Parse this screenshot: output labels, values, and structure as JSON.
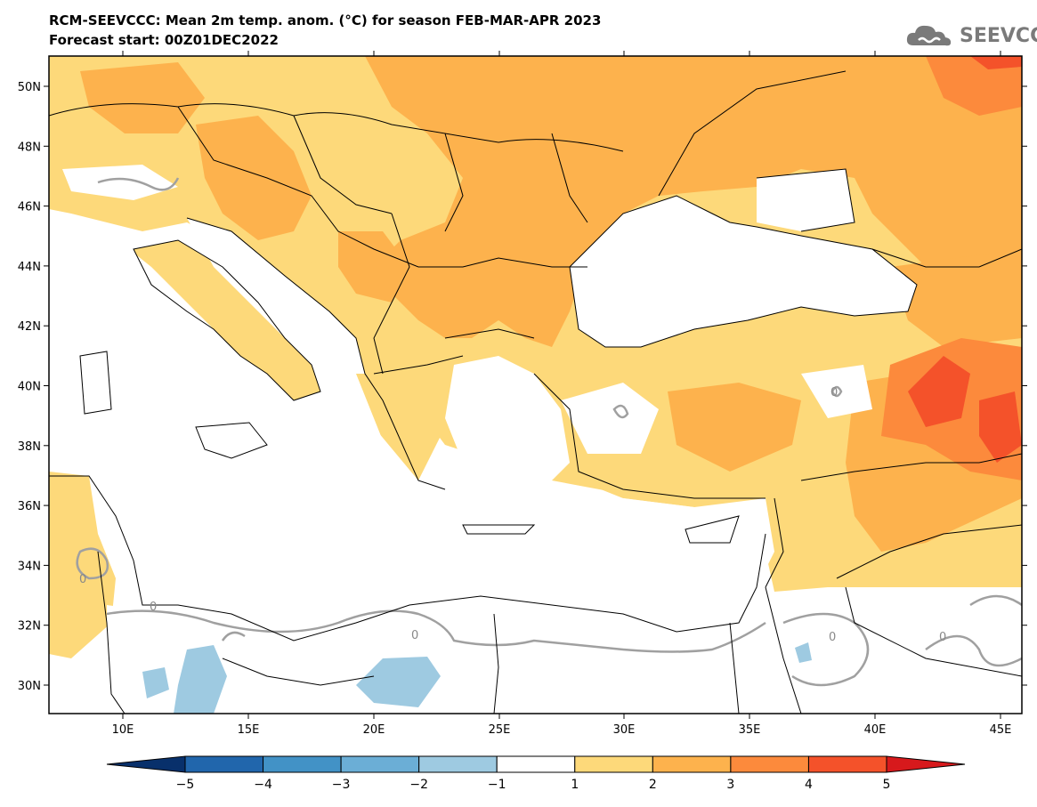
{
  "header": {
    "title_line1": "RCM-SEEVCCC: Mean 2m temp. anom. (°C) for season FEB-MAR-APR 2023",
    "title_line2": "Forecast start: 00Z01DEC2022",
    "logo_text": "SEEVCCC",
    "logo_icon": "cloud-icon"
  },
  "map": {
    "lon_ticks": [
      "10E",
      "15E",
      "20E",
      "25E",
      "30E",
      "35E",
      "40E",
      "45E"
    ],
    "lat_ticks": [
      "50N",
      "48N",
      "46N",
      "44N",
      "42N",
      "40N",
      "38N",
      "36N",
      "34N",
      "32N",
      "30N"
    ],
    "contour_labels": [
      "0",
      "0",
      "0",
      "0",
      "0",
      "0"
    ]
  },
  "colorbar": {
    "labels": [
      "−5",
      "−4",
      "−3",
      "−2",
      "−1",
      "1",
      "2",
      "3",
      "4",
      "5"
    ],
    "colors": [
      "#08306b",
      "#2166ac",
      "#4292c6",
      "#6baed6",
      "#9ecae1",
      "#ffffff",
      "#fdd97a",
      "#fdb24d",
      "#fc8a3c",
      "#f4522a",
      "#d7191c"
    ]
  },
  "palette": {
    "white": "#ffffff",
    "light_yellow": "#fdd97a",
    "orange": "#fdb24d",
    "dark_orange": "#fc8a3c",
    "red": "#f4522a",
    "light_blue": "#9ecae1",
    "contour_gray": "#a0a0a0"
  }
}
